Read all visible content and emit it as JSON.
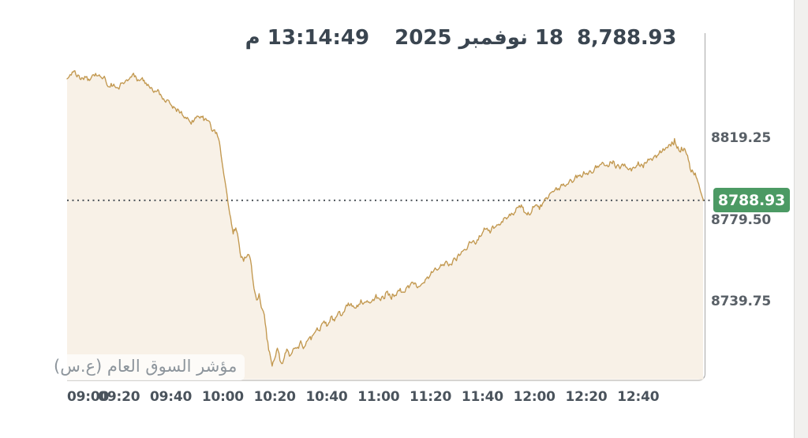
{
  "header": {
    "price": "8,788.93",
    "date": "18 نوفمبر 2025",
    "time": "13:14:49 م"
  },
  "watermark": "مؤشر السوق العام (ع.س)",
  "colors": {
    "line": "#c2984f",
    "fill": "#f8f1e7",
    "ref_dots": "#4e555b",
    "badge_bg": "#4c9a64",
    "badge_text": "#ffffff"
  },
  "chart_data": {
    "type": "area",
    "title": "مؤشر السوق العام (ع.س)",
    "xlabel": "",
    "ylabel": "",
    "legend_position": "none",
    "grid": false,
    "x_ticks": [
      "09:00",
      "09:20",
      "09:40",
      "10:00",
      "10:20",
      "10:40",
      "11:00",
      "11:20",
      "11:40",
      "12:00",
      "12:20",
      "12:40"
    ],
    "y_ticks": [
      "8819.25",
      "8779.50",
      "8739.75"
    ],
    "x_start": "09:00",
    "x_end": "13:05",
    "reference_value": 8788.93,
    "reference_label": "8788.93",
    "last_value": 8788.93,
    "series": [
      {
        "name": "مؤشر السوق العام (ع.س)",
        "points": [
          [
            "09:00",
            8848.1
          ],
          [
            "09:02",
            8850.7
          ],
          [
            "09:03",
            8851.9
          ],
          [
            "09:05",
            8848.4
          ],
          [
            "09:06",
            8850.0
          ],
          [
            "09:08",
            8847.3
          ],
          [
            "09:09",
            8848.8
          ],
          [
            "09:11",
            8849.6
          ],
          [
            "09:12",
            8851.1
          ],
          [
            "09:14",
            8849.6
          ],
          [
            "09:15",
            8846.5
          ],
          [
            "09:17",
            8844.2
          ],
          [
            "09:18",
            8846.1
          ],
          [
            "09:20",
            8845.0
          ],
          [
            "09:21",
            8846.9
          ],
          [
            "09:23",
            8848.1
          ],
          [
            "09:24",
            8848.4
          ],
          [
            "09:26",
            8849.2
          ],
          [
            "09:27",
            8847.3
          ],
          [
            "09:29",
            8848.1
          ],
          [
            "09:30",
            8846.5
          ],
          [
            "09:32",
            8845.0
          ],
          [
            "09:33",
            8843.4
          ],
          [
            "09:35",
            8842.3
          ],
          [
            "09:36",
            8840.4
          ],
          [
            "09:38",
            8838.1
          ],
          [
            "09:40",
            8836.2
          ],
          [
            "09:41",
            8834.2
          ],
          [
            "09:43",
            8832.7
          ],
          [
            "09:44",
            8831.9
          ],
          [
            "09:46",
            8829.6
          ],
          [
            "09:47",
            8826.9
          ],
          [
            "09:49",
            8827.7
          ],
          [
            "09:50",
            8828.8
          ],
          [
            "09:52",
            8829.6
          ],
          [
            "09:53",
            8828.1
          ],
          [
            "09:55",
            8825.8
          ],
          [
            "09:56",
            8823.1
          ],
          [
            "09:58",
            8820.4
          ],
          [
            "09:59",
            8815.0
          ],
          [
            "10:00",
            8805.8
          ],
          [
            "10:02",
            8788.1
          ],
          [
            "10:03",
            8780.8
          ],
          [
            "10:04",
            8773.2
          ],
          [
            "10:05",
            8775.9
          ],
          [
            "10:06",
            8769.3
          ],
          [
            "10:07",
            8761.6
          ],
          [
            "10:08",
            8759.7
          ],
          [
            "10:10",
            8762.8
          ],
          [
            "10:11",
            8756.6
          ],
          [
            "10:12",
            8746.3
          ],
          [
            "10:13",
            8741.3
          ],
          [
            "10:14",
            8743.2
          ],
          [
            "10:16",
            8732.8
          ],
          [
            "10:17",
            8722.1
          ],
          [
            "10:18",
            8714.4
          ],
          [
            "10:19",
            8709.0
          ],
          [
            "10:20",
            8712.9
          ],
          [
            "10:21",
            8716.0
          ],
          [
            "10:22",
            8711.3
          ],
          [
            "10:23",
            8709.0
          ],
          [
            "10:24",
            8713.6
          ],
          [
            "10:25",
            8716.0
          ],
          [
            "10:26",
            8713.6
          ],
          [
            "10:27",
            8717.5
          ],
          [
            "10:28",
            8716.0
          ],
          [
            "10:30",
            8719.0
          ],
          [
            "10:31",
            8717.5
          ],
          [
            "10:33",
            8723.2
          ],
          [
            "10:34",
            8722.1
          ],
          [
            "10:36",
            8727.1
          ],
          [
            "10:37",
            8725.9
          ],
          [
            "10:39",
            8729.8
          ],
          [
            "10:40",
            8728.2
          ],
          [
            "10:42",
            8732.8
          ],
          [
            "10:43",
            8731.3
          ],
          [
            "10:45",
            8734.4
          ],
          [
            "10:46",
            8733.2
          ],
          [
            "10:48",
            8737.4
          ],
          [
            "10:49",
            8739.0
          ],
          [
            "10:51",
            8736.7
          ],
          [
            "10:52",
            8738.2
          ],
          [
            "10:54",
            8739.7
          ],
          [
            "10:56",
            8739.0
          ],
          [
            "10:57",
            8740.9
          ],
          [
            "10:59",
            8741.7
          ],
          [
            "11:00",
            8740.5
          ],
          [
            "11:02",
            8742.8
          ],
          [
            "11:03",
            8743.6
          ],
          [
            "11:05",
            8742.0
          ],
          [
            "11:06",
            8742.8
          ],
          [
            "11:08",
            8744.4
          ],
          [
            "11:09",
            8745.1
          ],
          [
            "11:11",
            8745.9
          ],
          [
            "11:12",
            8747.1
          ],
          [
            "11:14",
            8748.2
          ],
          [
            "11:15",
            8747.4
          ],
          [
            "11:17",
            8749.7
          ],
          [
            "11:18",
            8750.5
          ],
          [
            "11:20",
            8752.8
          ],
          [
            "11:21",
            8754.3
          ],
          [
            "11:23",
            8755.1
          ],
          [
            "11:24",
            8756.6
          ],
          [
            "11:26",
            8758.2
          ],
          [
            "11:27",
            8756.6
          ],
          [
            "11:29",
            8759.7
          ],
          [
            "11:30",
            8761.6
          ],
          [
            "11:32",
            8764.3
          ],
          [
            "11:34",
            8766.6
          ],
          [
            "11:35",
            8768.9
          ],
          [
            "11:37",
            8767.8
          ],
          [
            "11:38",
            8770.1
          ],
          [
            "11:40",
            8773.5
          ],
          [
            "11:41",
            8774.7
          ],
          [
            "11:43",
            8773.2
          ],
          [
            "11:44",
            8775.5
          ],
          [
            "11:46",
            8777.0
          ],
          [
            "11:47",
            8778.5
          ],
          [
            "11:49",
            8780.1
          ],
          [
            "11:50",
            8781.6
          ],
          [
            "11:52",
            8783.1
          ],
          [
            "11:53",
            8784.7
          ],
          [
            "11:55",
            8786.2
          ],
          [
            "11:56",
            8783.9
          ],
          [
            "11:58",
            8782.0
          ],
          [
            "11:59",
            8785.4
          ],
          [
            "12:01",
            8787.4
          ],
          [
            "12:02",
            8785.8
          ],
          [
            "12:04",
            8788.9
          ],
          [
            "12:05",
            8790.5
          ],
          [
            "12:07",
            8791.6
          ],
          [
            "12:08",
            8793.1
          ],
          [
            "12:10",
            8795.1
          ],
          [
            "12:12",
            8796.6
          ],
          [
            "12:13",
            8798.1
          ],
          [
            "12:15",
            8799.3
          ],
          [
            "12:16",
            8800.4
          ],
          [
            "12:18",
            8801.2
          ],
          [
            "12:19",
            8802.3
          ],
          [
            "12:21",
            8803.1
          ],
          [
            "12:22",
            8802.3
          ],
          [
            "12:24",
            8803.9
          ],
          [
            "12:25",
            8805.0
          ],
          [
            "12:27",
            8806.5
          ],
          [
            "12:28",
            8805.4
          ],
          [
            "12:30",
            8807.3
          ],
          [
            "12:31",
            8805.8
          ],
          [
            "12:33",
            8804.6
          ],
          [
            "12:34",
            8806.2
          ],
          [
            "12:36",
            8804.6
          ],
          [
            "12:37",
            8803.5
          ],
          [
            "12:39",
            8805.0
          ],
          [
            "12:40",
            8806.5
          ],
          [
            "12:42",
            8805.8
          ],
          [
            "12:43",
            8807.3
          ],
          [
            "12:45",
            8808.8
          ],
          [
            "12:47",
            8810.4
          ],
          [
            "12:48",
            8811.9
          ],
          [
            "12:50",
            8813.8
          ],
          [
            "12:51",
            8815.4
          ],
          [
            "12:53",
            8816.9
          ],
          [
            "12:54",
            8817.6
          ],
          [
            "12:55",
            8815.0
          ],
          [
            "12:56",
            8813.1
          ],
          [
            "12:57",
            8815.0
          ],
          [
            "12:58",
            8813.1
          ],
          [
            "12:59",
            8810.4
          ],
          [
            "13:00",
            8805.0
          ],
          [
            "13:02",
            8801.9
          ],
          [
            "13:03",
            8798.1
          ],
          [
            "13:04",
            8793.5
          ],
          [
            "13:05",
            8789.6
          ],
          [
            "13:05",
            8788.93
          ]
        ]
      }
    ]
  }
}
